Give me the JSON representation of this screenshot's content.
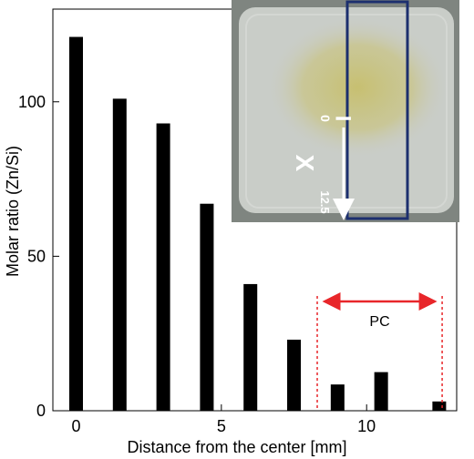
{
  "chart_data": {
    "type": "bar",
    "xlabel": "Distance from the center [mm]",
    "ylabel": "Molar ratio (Zn/Si)",
    "x": [
      0,
      1.5,
      3,
      4.5,
      6,
      7.5,
      9,
      10.5,
      12.5
    ],
    "values": [
      121,
      101,
      93,
      67,
      41,
      23,
      8.5,
      12.5,
      3
    ],
    "xlim": [
      -0.8,
      13.1
    ],
    "ylim": [
      0,
      130
    ],
    "xticks": [
      0,
      5,
      10
    ],
    "yticks": [
      0,
      50,
      100
    ],
    "bar_color": "#000000",
    "region": {
      "label": "PC",
      "from": 8.3,
      "to": 12.6,
      "color": "#e8262a"
    },
    "inset_photo": {
      "colors": {
        "background": "#7f8580",
        "pad": "#c9cdc8",
        "stain": "#c8c27a",
        "rectangle": "#1c2f6e"
      },
      "labels": {
        "line_label": "I",
        "axis_label": "X",
        "start": "0",
        "end": "12.5"
      }
    }
  }
}
